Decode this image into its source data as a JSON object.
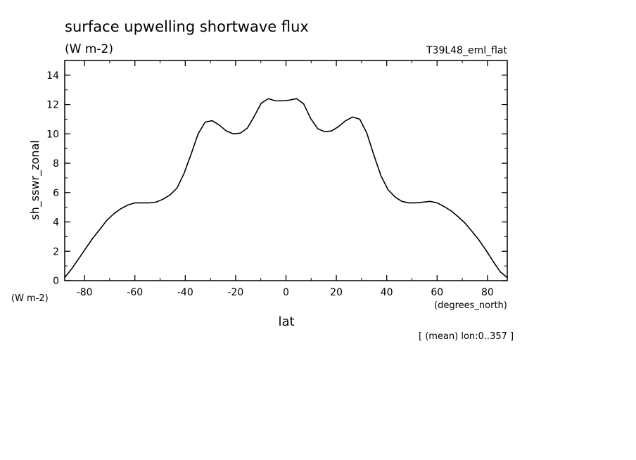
{
  "chart_data": {
    "type": "line",
    "title": "surface upwelling shortwave flux",
    "subtitle": "(W m-2)",
    "run_label": "T39L48_eml_flat",
    "xlabel": "lat",
    "x_units": "(degrees_north)",
    "ylabel": "sh_sswr_zonal",
    "y_units": "(W m-2)",
    "footnote": "[ (mean) lon:0..357 ]",
    "xlim": [
      -87.86,
      87.86
    ],
    "ylim": [
      0,
      15
    ],
    "x_ticks": [
      -80,
      -60,
      -40,
      -20,
      0,
      20,
      40,
      60,
      80
    ],
    "x_tick_labels": [
      "-80",
      "-60",
      "-40",
      "-20",
      "0",
      "20",
      "40",
      "60",
      "80"
    ],
    "y_ticks": [
      0,
      2,
      4,
      6,
      8,
      10,
      12,
      14
    ],
    "y_tick_labels": [
      "0",
      "2",
      "4",
      "6",
      "8",
      "10",
      "12",
      "14"
    ],
    "series": [
      {
        "x": [
          -87.9,
          -85.1,
          -82.3,
          -79.5,
          -76.7,
          -73.9,
          -71.2,
          -68.4,
          -65.6,
          -62.8,
          -60.0,
          -57.2,
          -54.4,
          -51.6,
          -48.8,
          -46.0,
          -43.3,
          -40.5,
          -37.7,
          -34.9,
          -32.1,
          -29.3,
          -26.5,
          -23.7,
          -20.9,
          -18.1,
          -15.3,
          -12.6,
          -9.8,
          -7.0,
          -4.2,
          -1.4,
          1.4,
          4.2,
          7.0,
          9.8,
          12.6,
          15.3,
          18.1,
          20.9,
          23.7,
          26.5,
          29.3,
          32.1,
          34.9,
          37.7,
          40.5,
          43.3,
          46.0,
          48.8,
          51.6,
          54.4,
          57.2,
          60.0,
          62.8,
          65.6,
          68.4,
          71.2,
          73.9,
          76.7,
          79.5,
          82.3,
          85.1,
          87.9
        ],
        "y": [
          0.2,
          0.8,
          1.5,
          2.2,
          2.9,
          3.5,
          4.1,
          4.55,
          4.9,
          5.15,
          5.3,
          5.3,
          5.3,
          5.35,
          5.55,
          5.85,
          6.3,
          7.3,
          8.6,
          10.0,
          10.8,
          10.9,
          10.6,
          10.2,
          10.0,
          10.05,
          10.4,
          11.2,
          12.1,
          12.4,
          12.25,
          12.25,
          12.3,
          12.4,
          12.05,
          11.05,
          10.35,
          10.15,
          10.2,
          10.5,
          10.9,
          11.15,
          11.0,
          10.05,
          8.55,
          7.15,
          6.2,
          5.7,
          5.4,
          5.3,
          5.3,
          5.35,
          5.4,
          5.3,
          5.05,
          4.75,
          4.35,
          3.9,
          3.35,
          2.75,
          2.05,
          1.3,
          0.6,
          0.2
        ]
      }
    ]
  }
}
